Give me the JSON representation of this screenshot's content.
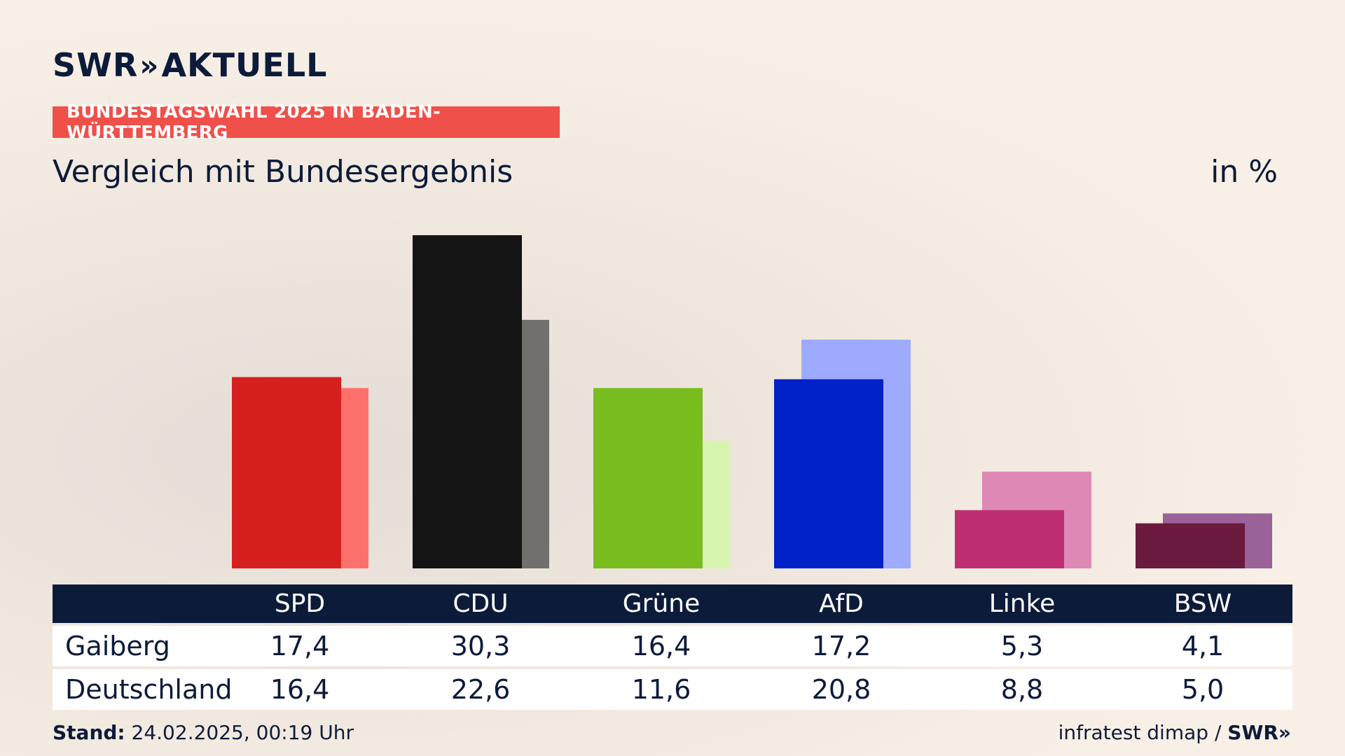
{
  "header": {
    "logo_text": "SWR",
    "logo_arrows": "»",
    "logo_suffix": "AKTUELL",
    "banner": "BUNDESTAGSWAHL 2025 IN BADEN-WÜRTTEMBERG",
    "subtitle": "Vergleich mit Bundesergebnis",
    "unit": "in %"
  },
  "chart_data": {
    "type": "bar",
    "categories": [
      "SPD",
      "CDU",
      "Grüne",
      "AfD",
      "Linke",
      "BSW"
    ],
    "series": [
      {
        "name": "Gaiberg",
        "values": [
          17.4,
          30.3,
          16.4,
          17.2,
          5.3,
          4.1
        ]
      },
      {
        "name": "Deutschland",
        "values": [
          16.4,
          22.6,
          11.6,
          20.8,
          8.8,
          5.0
        ]
      }
    ],
    "ylim": [
      0,
      30.3
    ],
    "colors_primary": [
      "#d6201f",
      "#141414",
      "#78bc1e",
      "#0022c8",
      "#be2f72",
      "#6a1a3d"
    ],
    "colors_secondary": [
      "#fd706b",
      "#71706d",
      "#d8f5b0",
      "#9eaafd",
      "#de88b5",
      "#9b6199"
    ]
  },
  "table": {
    "headers": [
      "SPD",
      "CDU",
      "Grüne",
      "AfD",
      "Linke",
      "BSW"
    ],
    "rows": [
      {
        "label": "Gaiberg",
        "values": [
          "17,4",
          "30,3",
          "16,4",
          "17,2",
          "5,3",
          "4,1"
        ]
      },
      {
        "label": "Deutschland",
        "values": [
          "16,4",
          "22,6",
          "11,6",
          "20,8",
          "8,8",
          "5,0"
        ]
      }
    ]
  },
  "footer": {
    "stand_label": "Stand:",
    "stand_value": "24.02.2025, 00:19 Uhr",
    "source": "infratest dimap /",
    "source_brand": "SWR»"
  }
}
